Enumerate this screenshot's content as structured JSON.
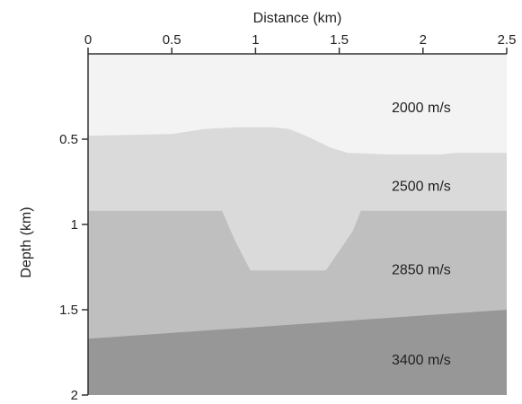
{
  "figure": {
    "x_axis": {
      "label": "Distance (km)",
      "range": [
        0,
        2.5
      ],
      "ticks": [
        "0",
        "0.5",
        "1",
        "1.5",
        "2",
        "2.5"
      ],
      "tick_values": [
        0,
        0.5,
        1,
        1.5,
        2,
        2.5
      ],
      "position": "top"
    },
    "y_axis": {
      "label": "Depth (km)",
      "range": [
        0.0,
        2.0
      ],
      "ticks": [
        "0.5",
        "1",
        "1.5",
        "2"
      ],
      "tick_values": [
        0.5,
        1,
        1.5,
        2
      ]
    },
    "layers": [
      {
        "label": "2000 m/s",
        "color": "#f3f3f3"
      },
      {
        "label": "2500 m/s",
        "color": "#dadada"
      },
      {
        "label": "2850 m/s",
        "color": "#bfbfbf"
      },
      {
        "label": "3400 m/s",
        "color": "#979797"
      }
    ],
    "boundaries": {
      "top_of_2500": [
        [
          0,
          0.48
        ],
        [
          0.5,
          0.47
        ],
        [
          0.7,
          0.44
        ],
        [
          0.9,
          0.43
        ],
        [
          1.1,
          0.43
        ],
        [
          1.2,
          0.44
        ],
        [
          1.3,
          0.48
        ],
        [
          1.45,
          0.55
        ],
        [
          1.55,
          0.58
        ],
        [
          1.8,
          0.59
        ],
        [
          2.1,
          0.59
        ],
        [
          2.2,
          0.58
        ],
        [
          2.5,
          0.58
        ]
      ],
      "top_of_2850_graben": [
        [
          0,
          0.92
        ],
        [
          0.8,
          0.92
        ],
        [
          0.88,
          1.1
        ],
        [
          0.97,
          1.27
        ],
        [
          1.42,
          1.27
        ],
        [
          1.58,
          1.04
        ],
        [
          1.63,
          0.92
        ],
        [
          2.5,
          0.92
        ]
      ],
      "top_of_3400": [
        [
          0,
          1.67
        ],
        [
          2.5,
          1.5
        ]
      ]
    }
  }
}
